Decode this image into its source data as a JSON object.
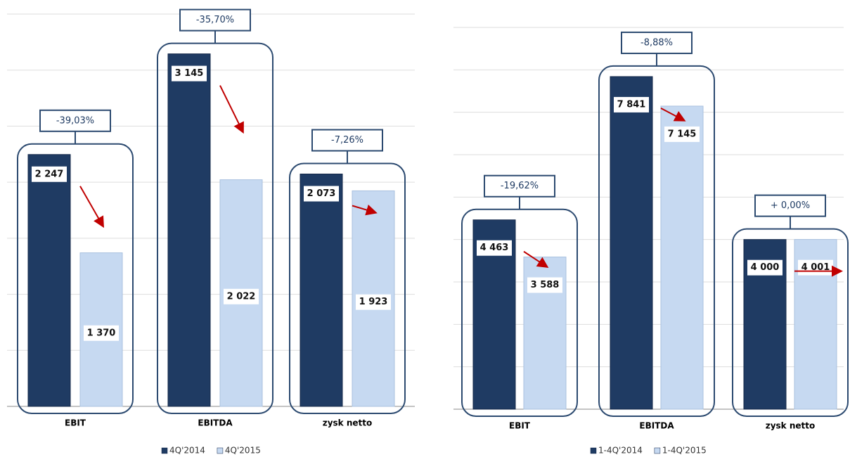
{
  "chart_data": [
    {
      "type": "bar",
      "categories": [
        "EBIT",
        "EBITDA",
        "zysk netto"
      ],
      "series": [
        {
          "name": "4Q'2014",
          "color": "#1f3b63",
          "values": [
            2247,
            3145,
            2073
          ],
          "value_labels": [
            "2 247",
            "3 145",
            "2 073"
          ]
        },
        {
          "name": "4Q'2015",
          "color": "#c6d9f1",
          "values": [
            1370,
            2022,
            1923
          ],
          "value_labels": [
            "1 370",
            "2 022",
            "1 923"
          ]
        }
      ],
      "annotations": [
        "-39,03%",
        "-35,70%",
        "-7,26%"
      ],
      "ylim": [
        0,
        3500
      ],
      "yticks": [
        0,
        500,
        1000,
        1500,
        2000,
        2500,
        3000,
        3500
      ],
      "grid": true
    },
    {
      "type": "bar",
      "categories": [
        "EBIT",
        "EBITDA",
        "zysk netto"
      ],
      "series": [
        {
          "name": "1-4Q'2014",
          "color": "#1f3b63",
          "values": [
            4463,
            7841,
            4000
          ],
          "value_labels": [
            "4 463",
            "7 841",
            "4 000"
          ]
        },
        {
          "name": "1-4Q'2015",
          "color": "#c6d9f1",
          "values": [
            3588,
            7145,
            4001
          ],
          "value_labels": [
            "3 588",
            "7 145",
            "4 001"
          ]
        }
      ],
      "annotations": [
        "-19,62%",
        "-8,88%",
        "+ 0,00%"
      ],
      "ylim": [
        0,
        9000
      ],
      "yticks": [
        0,
        1000,
        2000,
        3000,
        4000,
        5000,
        6000,
        7000,
        8000,
        9000
      ],
      "grid": true
    }
  ]
}
